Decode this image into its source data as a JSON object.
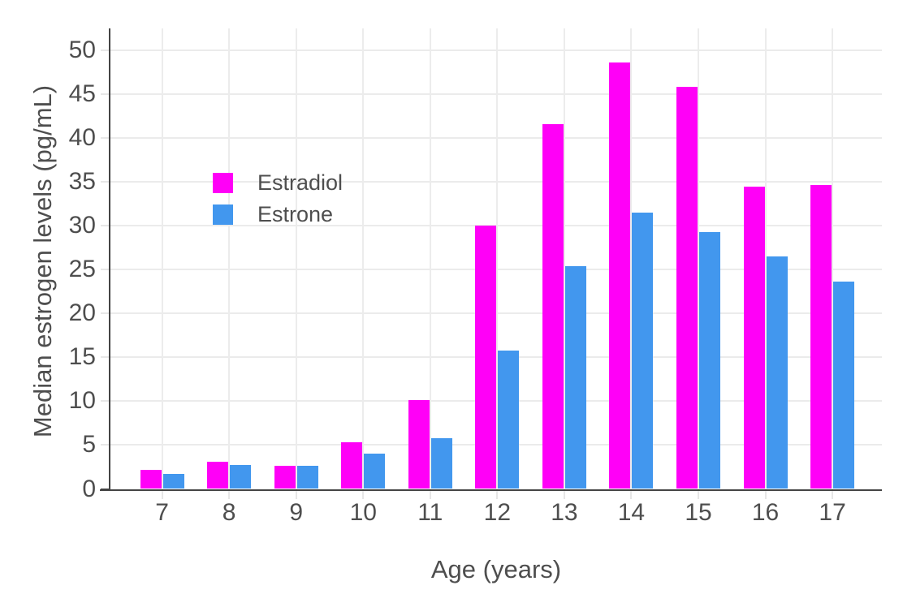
{
  "chart_data": {
    "type": "bar",
    "bar_mode": "group",
    "title": "",
    "xlabel": "Age (years)",
    "ylabel": "Median estrogen levels (pg/mL)",
    "categories": [
      "7",
      "8",
      "9",
      "10",
      "11",
      "12",
      "13",
      "14",
      "15",
      "16",
      "17"
    ],
    "series": [
      {
        "name": "Estradiol",
        "color": "#FF00F7",
        "values": [
          2.2,
          3.1,
          2.6,
          5.3,
          10.1,
          30.0,
          41.6,
          48.6,
          45.8,
          34.5,
          34.6
        ]
      },
      {
        "name": "Estrone",
        "color": "#4297EE",
        "values": [
          1.7,
          2.7,
          2.6,
          4.0,
          5.8,
          15.8,
          25.4,
          31.5,
          29.3,
          26.5,
          23.6
        ]
      }
    ],
    "yticks": [
      0,
      5,
      10,
      15,
      20,
      25,
      30,
      35,
      40,
      45,
      50
    ],
    "ylim": [
      0,
      52.5
    ],
    "grid": true,
    "legend_position": "inside-top-left"
  },
  "style": {
    "background": "#FFFFFF",
    "axis_color": "#444444",
    "grid_color": "#EBEBEB",
    "text_color": "#4E4E4E",
    "estradiol_color": "#FF00F7",
    "estrone_color": "#4297EE"
  }
}
